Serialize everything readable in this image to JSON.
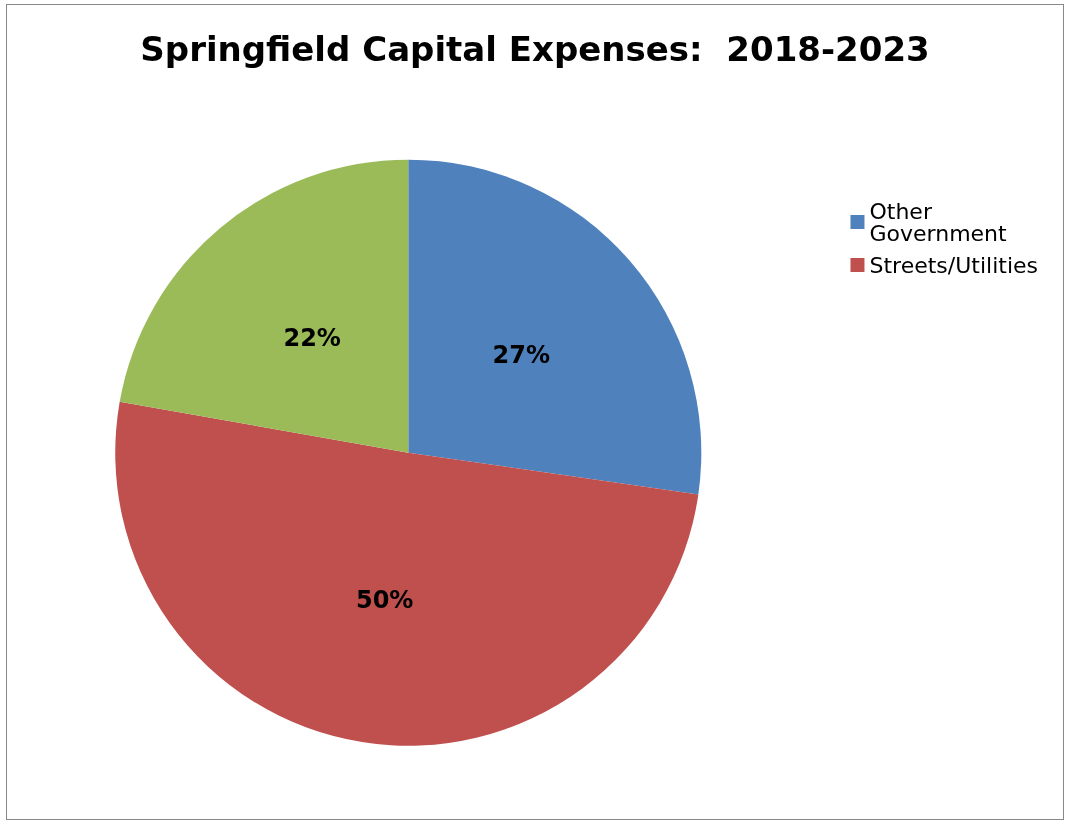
{
  "chart_data": {
    "type": "pie",
    "title": "Springfield Capital Expenses:  2018-2023",
    "categories": [
      "Other Government",
      "Streets/Utilities",
      null
    ],
    "values": [
      27,
      50,
      22
    ],
    "colors": [
      "#4f81bd",
      "#c0504d",
      "#9bbb59"
    ],
    "value_labels": [
      "27%",
      "50%",
      "22%"
    ],
    "legend": "top right"
  }
}
